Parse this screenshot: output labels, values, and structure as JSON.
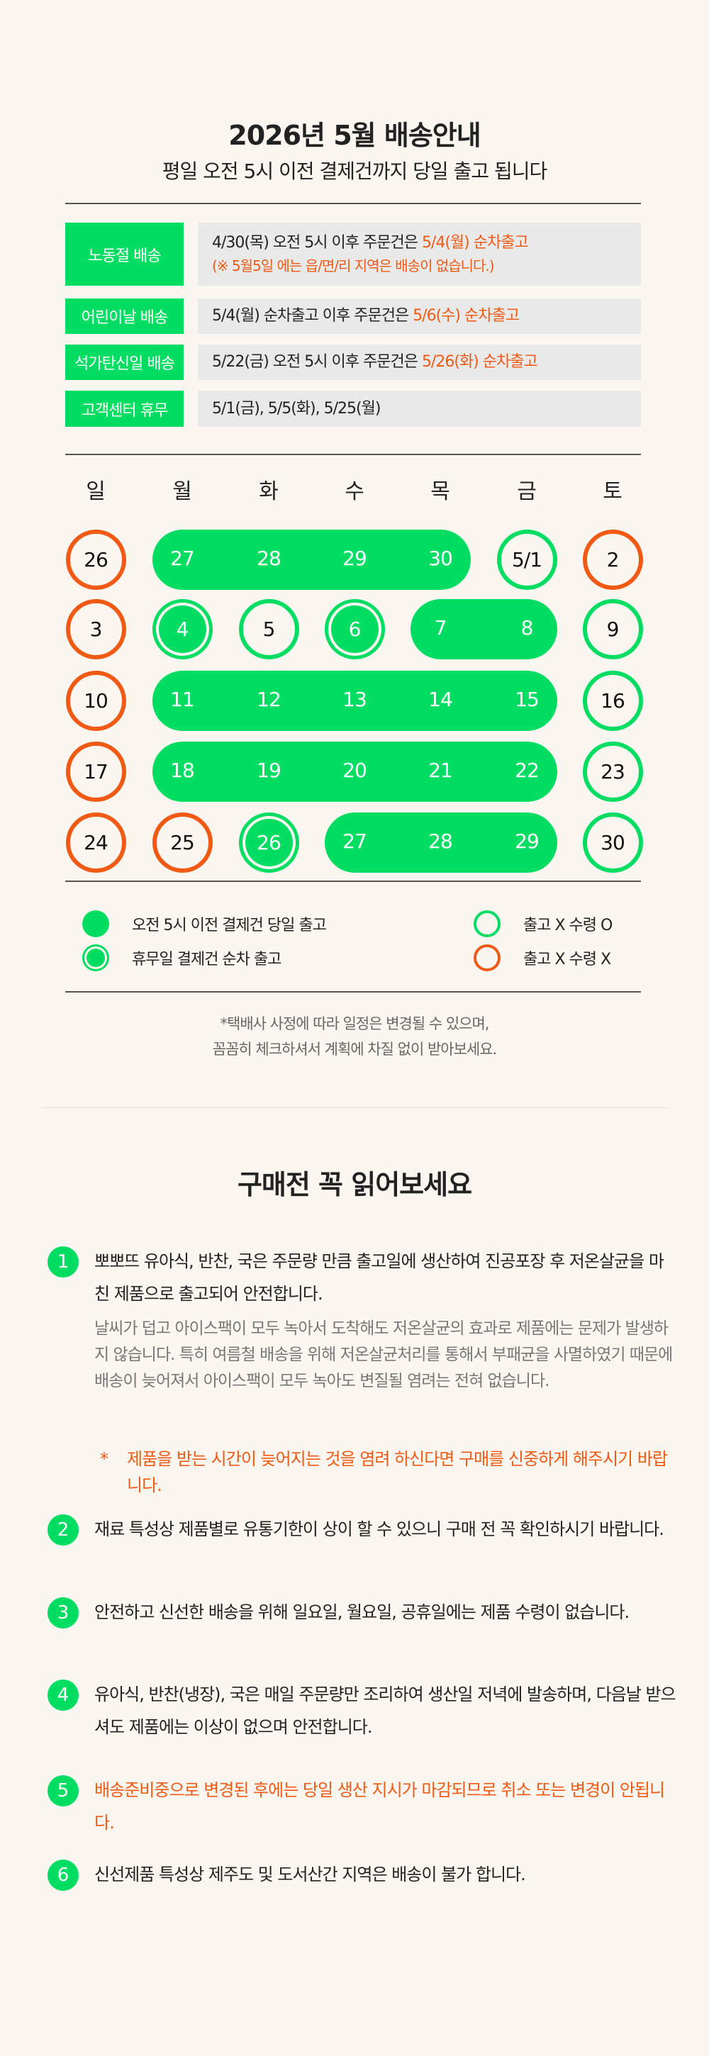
{
  "header": {
    "title": "2026년 5월 배송안내",
    "subtitle": "평일 오전 5시 이전 결제건까지 당일 출고 됩니다"
  },
  "schedule": [
    {
      "label": "노동절 배송",
      "text": "4/30(목) 오전 5시 이후 주문건은 ",
      "highlight": "5/4(월) 순차출고",
      "note": "(※ 5월5일 에는 읍/면/리 지역은 배송이 없습니다.)"
    },
    {
      "label": "어린이날 배송",
      "text": "5/4(월) 순차출고 이후 주문건은 ",
      "highlight": "5/6(수) 순차출고"
    },
    {
      "label": "석가탄신일 배송",
      "text": "5/22(금) 오전 5시 이후 주문건은 ",
      "highlight": "5/26(화) 순차출고"
    },
    {
      "label": "고객센터 휴무",
      "text": "5/1(금), 5/5(화), 5/25(월)"
    }
  ],
  "calendar": {
    "weekdays": [
      "일",
      "월",
      "화",
      "수",
      "목",
      "금",
      "토"
    ],
    "weeks": [
      [
        {
          "d": "26",
          "t": "off"
        },
        {
          "d": "27",
          "t": "ship"
        },
        {
          "d": "28",
          "t": "ship"
        },
        {
          "d": "29",
          "t": "ship"
        },
        {
          "d": "30",
          "t": "ship"
        },
        {
          "d": "5/1",
          "t": "recv"
        },
        {
          "d": "2",
          "t": "off"
        }
      ],
      [
        {
          "d": "3",
          "t": "off"
        },
        {
          "d": "4",
          "t": "seq"
        },
        {
          "d": "5",
          "t": "recv"
        },
        {
          "d": "6",
          "t": "seq"
        },
        {
          "d": "7",
          "t": "ship"
        },
        {
          "d": "8",
          "t": "ship"
        },
        {
          "d": "9",
          "t": "recv"
        }
      ],
      [
        {
          "d": "10",
          "t": "off"
        },
        {
          "d": "11",
          "t": "ship"
        },
        {
          "d": "12",
          "t": "ship"
        },
        {
          "d": "13",
          "t": "ship"
        },
        {
          "d": "14",
          "t": "ship"
        },
        {
          "d": "15",
          "t": "ship"
        },
        {
          "d": "16",
          "t": "recv"
        }
      ],
      [
        {
          "d": "17",
          "t": "off"
        },
        {
          "d": "18",
          "t": "ship"
        },
        {
          "d": "19",
          "t": "ship"
        },
        {
          "d": "20",
          "t": "ship"
        },
        {
          "d": "21",
          "t": "ship"
        },
        {
          "d": "22",
          "t": "ship"
        },
        {
          "d": "23",
          "t": "recv"
        }
      ],
      [
        {
          "d": "24",
          "t": "off"
        },
        {
          "d": "25",
          "t": "off"
        },
        {
          "d": "26",
          "t": "seq"
        },
        {
          "d": "27",
          "t": "ship"
        },
        {
          "d": "28",
          "t": "ship"
        },
        {
          "d": "29",
          "t": "ship"
        },
        {
          "d": "30",
          "t": "recv"
        }
      ]
    ],
    "colors": {
      "green": "#00dd62",
      "orange": "#f05a14"
    }
  },
  "legend": {
    "ship": "오전 5시 이전 결제건 당일 출고",
    "seq": "휴무일 결제건 순차 출고",
    "recv": "출고 X 수령 O",
    "off": "출고 X 수령 X"
  },
  "notes": [
    "*택배사 사정에 따라 일정은 변경될 수 있으며,",
    "꼼꼼히 체크하셔서 계획에 차질 없이 받아보세요."
  ],
  "notice": {
    "title": "구매전 꼭 읽어보세요",
    "items": [
      {
        "num": "1",
        "text": "뽀뽀뜨 유아식, 반찬, 국은 주문량 만큼 출고일에 생산하여 진공포장 후 저온살균을 마친 제품으로 출고되어 안전합니다.",
        "sub": "날씨가 덥고 아이스팩이 모두 녹아서 도착해도 저온살균의 효과로 제품에는 문제가 발생하지 않습니다. 특히 여름철 배송을 위해 저온살균처리를 통해서 부패균을 사멸하였기 때문에 배송이 늦어져서 아이스팩이 모두 녹아도 변질될 염려는 전혀 없습니다.",
        "warning": "제품을 받는 시간이 늦어지는 것을 염려 하신다면 구매를 신중하게 해주시기 바랍니다."
      },
      {
        "num": "2",
        "text": "재료 특성상 제품별로 유통기한이 상이 할 수 있으니 구매 전 꼭 확인하시기 바랍니다."
      },
      {
        "num": "3",
        "text": "안전하고 신선한 배송을 위해 일요일, 월요일, 공휴일에는 제품 수령이 없습니다."
      },
      {
        "num": "4",
        "text": "유아식, 반찬(냉장), 국은 매일 주문량만 조리하여 생산일 저녁에 발송하며, 다음날 받으셔도 제품에는 이상이 없으며 안전합니다."
      },
      {
        "num": "5",
        "text": "배송준비중으로 변경된 후에는 당일 생산 지시가 마감되므로 취소 또는 변경이 안됩니다.",
        "highlight": true
      },
      {
        "num": "6",
        "text": "신선제품 특성상 제주도 및 도서산간 지역은 배송이 불가 합니다."
      }
    ]
  }
}
